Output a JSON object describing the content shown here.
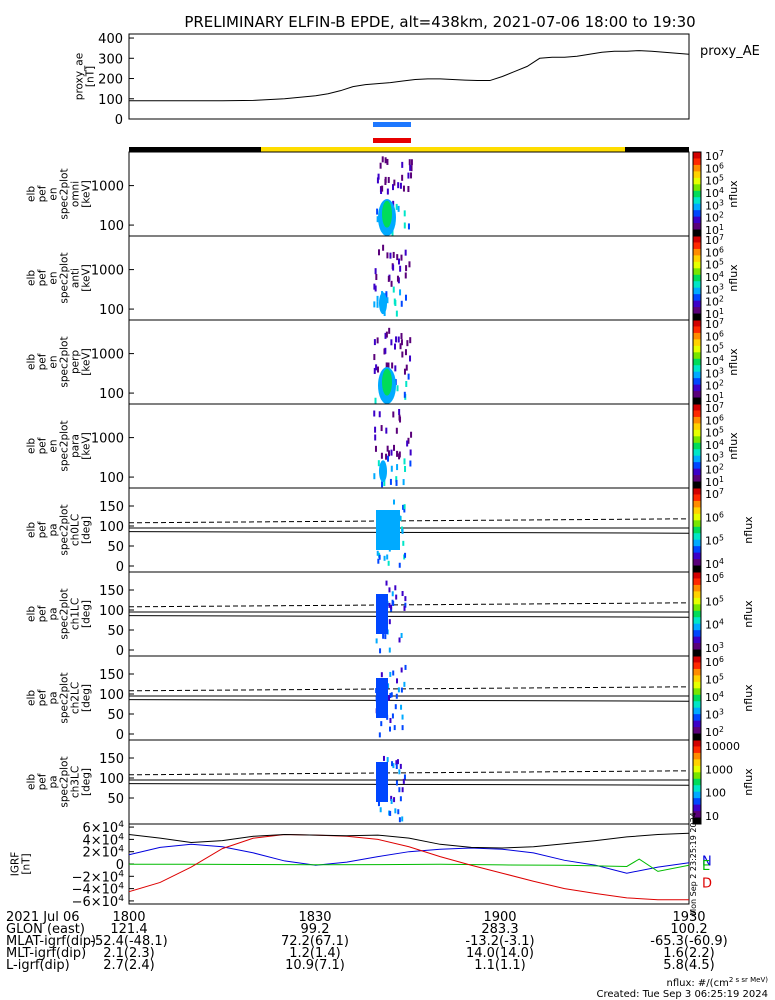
{
  "title": "PRELIMINARY ELFIN-B EPDE, alt=438km, 2021-07-06 18:00 to 19:30",
  "colors": {
    "colorbar": [
      "#000000",
      "#5a007a",
      "#3c00c8",
      "#0046ff",
      "#00aaff",
      "#00e6c8",
      "#00dc5a",
      "#78e600",
      "#e6ff00",
      "#ffd200",
      "#ff8c00",
      "#ff2800",
      "#d20000",
      "#ffffff"
    ],
    "omni_bar": [
      "#000000",
      "#ffdd00",
      "#000000"
    ],
    "blue_bar": "#1e78ff",
    "red_bar": "#e60000",
    "N": "#0000dd",
    "E": "#00bb00",
    "D": "#dd0000"
  },
  "proxy_ae": {
    "ylabel": [
      "proxy_ae",
      "[nT]"
    ],
    "legend": "proxy_AE",
    "yticks": [
      "400",
      "300",
      "200",
      "100",
      "0"
    ],
    "ylim": [
      0,
      420
    ]
  },
  "spec_panels": [
    {
      "ylabel": [
        "elb",
        "pef",
        "en",
        "spec2plot",
        "omni",
        "[keV]"
      ],
      "yticks": [
        "1000",
        "100"
      ],
      "cb_ticks": [
        "10^7",
        "10^6",
        "10^5",
        "10^4",
        "10^3",
        "10^2",
        "10^1"
      ],
      "cb_label": "nflux"
    },
    {
      "ylabel": [
        "elb",
        "pef",
        "en",
        "spec2plot",
        "anti",
        "[keV]"
      ],
      "yticks": [
        "1000",
        "100"
      ],
      "cb_ticks": [
        "10^7",
        "10^6",
        "10^5",
        "10^4",
        "10^3",
        "10^2",
        "10^1"
      ],
      "cb_label": "nflux"
    },
    {
      "ylabel": [
        "elb",
        "pef",
        "en",
        "spec2plot",
        "perp",
        "[keV]"
      ],
      "yticks": [
        "1000",
        "100"
      ],
      "cb_ticks": [
        "10^7",
        "10^6",
        "10^5",
        "10^4",
        "10^3",
        "10^2",
        "10^1"
      ],
      "cb_label": "nflux"
    },
    {
      "ylabel": [
        "elb",
        "pef",
        "en",
        "spec2plot",
        "para",
        "[keV]"
      ],
      "yticks": [
        "1000",
        "100"
      ],
      "cb_ticks": [
        "10^7",
        "10^6",
        "10^5",
        "10^4",
        "10^3",
        "10^2",
        "10^1"
      ],
      "cb_label": "nflux"
    }
  ],
  "pa_panels": [
    {
      "ylabel": [
        "elb",
        "pef",
        "pa",
        "spec2plot",
        "ch0LC",
        "[deg]"
      ],
      "yticks": [
        "150",
        "100",
        "50",
        "0"
      ],
      "cb_ticks": [
        "10^7",
        "10^6",
        "10^5",
        "10^4"
      ],
      "cb_label": "nflux"
    },
    {
      "ylabel": [
        "elb",
        "pef",
        "pa",
        "spec2plot",
        "ch1LC",
        "[deg]"
      ],
      "yticks": [
        "150",
        "100",
        "50",
        "0"
      ],
      "cb_ticks": [
        "10^6",
        "10^5",
        "10^4",
        "10^3"
      ],
      "cb_label": "nflux"
    },
    {
      "ylabel": [
        "elb",
        "pef",
        "pa",
        "spec2plot",
        "ch2LC",
        "[deg]"
      ],
      "yticks": [
        "150",
        "100",
        "50",
        "0"
      ],
      "cb_ticks": [
        "10^6",
        "10^5",
        "10^4",
        "10^3",
        "10^2"
      ],
      "cb_label": "nflux"
    },
    {
      "ylabel": [
        "elb",
        "pef",
        "pa",
        "spec2plot",
        "ch3LC",
        "[deg]"
      ],
      "yticks": [
        "150",
        "100",
        "50"
      ],
      "cb_ticks": [
        "10000",
        "1000",
        "100",
        "10"
      ],
      "cb_label": "nflux"
    }
  ],
  "igrf": {
    "ylabel": [
      "IGRF",
      "[nT]"
    ],
    "yticks": [
      "6×10^4",
      "4×10^4",
      "2×10^4",
      "0",
      "−2×10^4",
      "−4×10^4",
      "−6×10^4"
    ],
    "legend": [
      "N",
      "E",
      "D"
    ],
    "side_text": "Mon Sep  2 23:25:19 2024"
  },
  "chart_data": {
    "type": "line",
    "title": "PRELIMINARY ELFIN-B EPDE, alt=438km, 2021-07-06 18:00 to 19:30",
    "x_unit": "minutes after 18:00 UT",
    "x_range": [
      0,
      90
    ],
    "series": [
      {
        "name": "proxy_AE",
        "x": [
          0,
          5,
          10,
          15,
          20,
          25,
          30,
          32,
          34,
          36,
          38,
          40,
          42,
          44,
          46,
          48,
          50,
          52,
          54,
          56,
          58,
          60,
          62,
          64,
          66,
          68,
          70,
          72,
          74,
          76,
          78,
          80,
          82,
          84,
          86,
          88,
          90
        ],
        "y": [
          90,
          90,
          90,
          90,
          92,
          100,
          115,
          125,
          140,
          160,
          170,
          175,
          180,
          188,
          195,
          198,
          198,
          195,
          192,
          190,
          190,
          210,
          235,
          260,
          300,
          305,
          305,
          310,
          320,
          330,
          335,
          335,
          338,
          335,
          330,
          325,
          320
        ]
      },
      {
        "name": "N",
        "x": [
          0,
          5,
          10,
          15,
          20,
          25,
          30,
          35,
          40,
          45,
          50,
          55,
          60,
          65,
          70,
          75,
          80,
          85,
          90
        ],
        "y": [
          15000,
          27000,
          32000,
          28000,
          18000,
          5000,
          -2000,
          3000,
          12000,
          20000,
          24000,
          26000,
          24000,
          18000,
          6000,
          -2000,
          -15000,
          -5000,
          2000
        ]
      },
      {
        "name": "E",
        "x": [
          0,
          10,
          20,
          30,
          40,
          50,
          60,
          70,
          75,
          80,
          82,
          85,
          90
        ],
        "y": [
          -500,
          -500,
          -800,
          -1200,
          -1000,
          -500,
          -1500,
          -2000,
          -3000,
          -4000,
          8000,
          -12000,
          -2000
        ]
      },
      {
        "name": "D",
        "x": [
          0,
          5,
          10,
          15,
          20,
          25,
          30,
          35,
          40,
          45,
          50,
          55,
          60,
          65,
          70,
          75,
          80,
          85,
          90
        ],
        "y": [
          -45000,
          -30000,
          -5000,
          25000,
          42000,
          48000,
          47000,
          45000,
          40000,
          28000,
          12000,
          -2000,
          -15000,
          -28000,
          -40000,
          -48000,
          -55000,
          -58000,
          -58000
        ]
      },
      {
        "name": "total",
        "x": [
          0,
          5,
          10,
          15,
          20,
          25,
          30,
          35,
          40,
          45,
          50,
          55,
          60,
          65,
          70,
          75,
          80,
          85,
          90
        ],
        "y": [
          48000,
          42000,
          35000,
          38000,
          45000,
          48000,
          47000,
          46000,
          47000,
          42000,
          32000,
          27000,
          26000,
          28000,
          33000,
          38000,
          44000,
          48000,
          50000
        ]
      }
    ],
    "ylim_igrf": [
      -65000,
      65000
    ],
    "ylim_ae": [
      0,
      420
    ],
    "xticks": [
      "1800",
      "1830",
      "1900",
      "1930"
    ]
  },
  "footer": {
    "rows": [
      [
        "2021 Jul 06",
        "1800",
        "1830",
        "1900",
        "1930"
      ],
      [
        "GLON (east)",
        "121.4",
        "99.2",
        "283.3",
        "100.2"
      ],
      [
        "MLAT-igrf(dip)",
        "-52.4(-48.1)",
        "72.2(67.1)",
        "-13.2(-3.1)",
        "-65.3(-60.9)"
      ],
      [
        "MLT-igrf(dip)",
        "2.1(2.3)",
        "1.2(1.4)",
        "14.0(14.0)",
        "1.6(2.2)"
      ],
      [
        "L-igrf(dip)",
        "2.7(2.4)",
        "10.9(7.1)",
        "1.1(1.1)",
        "5.8(4.5)"
      ]
    ],
    "units": "nflux: #/(cm^2 s sr MeV)",
    "created": "Created: Tue Sep  3 06:25:19 2024"
  }
}
